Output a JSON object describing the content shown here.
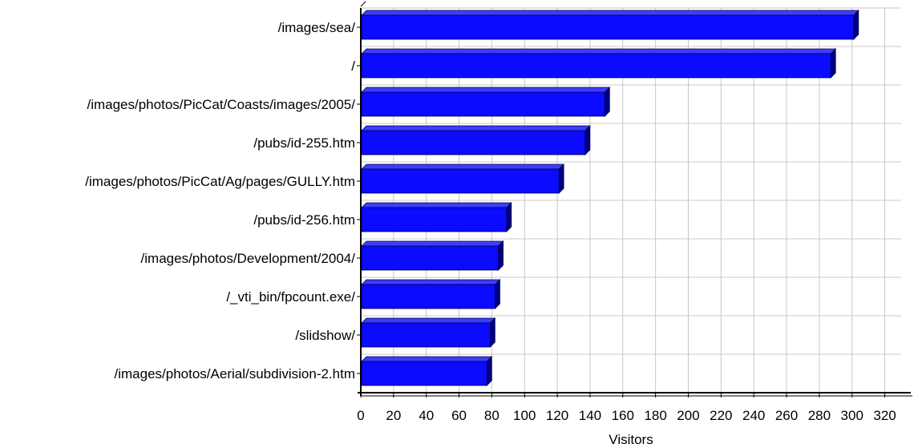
{
  "chart_data": {
    "type": "bar",
    "orientation": "horizontal",
    "categories": [
      "/images/sea/",
      "/",
      "/images/photos/PicCat/Coasts/images/2005/",
      "/pubs/id-255.htm",
      "/images/photos/PicCat/Ag/pages/GULLY.htm",
      "/pubs/id-256.htm",
      "/images/photos/Development/2004/",
      "/_vti_bin/fpcount.exe/",
      "/slidshow/",
      "/images/photos/Aerial/subdivision-2.htm"
    ],
    "values": [
      301,
      287,
      149,
      137,
      121,
      89,
      84,
      82,
      79,
      77
    ],
    "xlabel": "Visitors",
    "ylabel": "",
    "xlim": [
      0,
      330
    ],
    "xticks": [
      0,
      20,
      40,
      60,
      80,
      100,
      120,
      140,
      160,
      180,
      200,
      220,
      240,
      260,
      280,
      300,
      320
    ],
    "xtick_labels": [
      "0",
      "20",
      "40",
      "60",
      "80",
      "100",
      "120",
      "140",
      "160",
      "180",
      "200",
      "220",
      "240",
      "260",
      "280",
      "300",
      "320"
    ],
    "grid": true,
    "legend": "none",
    "colors": {
      "bar_front": "#0b0bff",
      "bar_top": "#3d3dff",
      "bar_side": "#000080",
      "bar_outline": "#00004a",
      "grid": "#c8c8c8",
      "axis": "#000000"
    }
  }
}
